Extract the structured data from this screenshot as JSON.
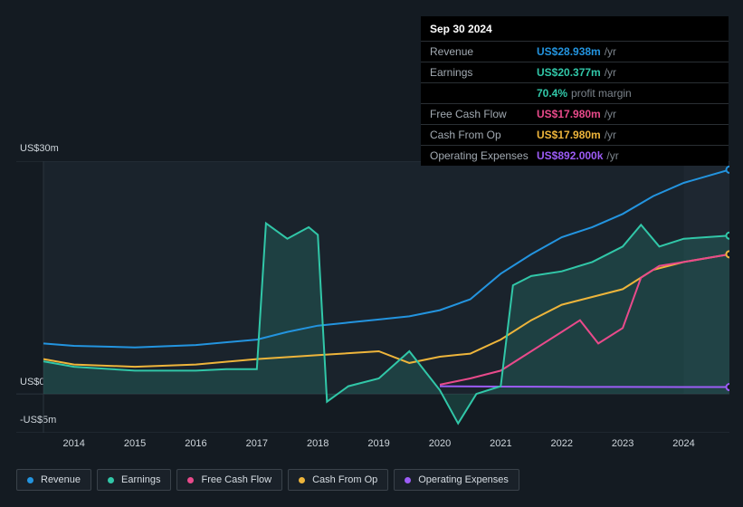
{
  "tooltip": {
    "date": "Sep 30 2024",
    "rows": [
      {
        "label": "Revenue",
        "value": "US$28.938m",
        "suffix": "/yr",
        "color": "#2394df"
      },
      {
        "label": "Earnings",
        "value": "US$20.377m",
        "suffix": "/yr",
        "color": "#31c7a8"
      },
      {
        "label": "",
        "value": "70.4%",
        "suffix": "profit margin",
        "color": "#31c7a8"
      },
      {
        "label": "Free Cash Flow",
        "value": "US$17.980m",
        "suffix": "/yr",
        "color": "#e94a8b"
      },
      {
        "label": "Cash From Op",
        "value": "US$17.980m",
        "suffix": "/yr",
        "color": "#eeb53b"
      },
      {
        "label": "Operating Expenses",
        "value": "US$892.000k",
        "suffix": "/yr",
        "color": "#9c5cf6"
      }
    ]
  },
  "chart": {
    "type": "line",
    "background": "#141b22",
    "plot_fill": "#1a232c",
    "grid_color": "#2a333c",
    "x": {
      "min": 2013.5,
      "max": 2024.75,
      "ticks": [
        2014,
        2015,
        2016,
        2017,
        2018,
        2019,
        2020,
        2021,
        2022,
        2023,
        2024
      ]
    },
    "y": {
      "min": -5,
      "max": 30,
      "ticks": [
        {
          "v": 30,
          "label": "US$30m"
        },
        {
          "v": 0,
          "label": "US$0"
        },
        {
          "v": -5,
          "label": "-US$5m"
        }
      ]
    },
    "series": {
      "revenue": {
        "label": "Revenue",
        "color": "#2394df",
        "fill": false,
        "points": [
          [
            2013.5,
            6.5
          ],
          [
            2014,
            6.2
          ],
          [
            2015,
            6.0
          ],
          [
            2016,
            6.3
          ],
          [
            2017,
            7.0
          ],
          [
            2017.5,
            8.0
          ],
          [
            2018,
            8.8
          ],
          [
            2018.5,
            9.2
          ],
          [
            2019,
            9.6
          ],
          [
            2019.5,
            10.0
          ],
          [
            2020,
            10.8
          ],
          [
            2020.5,
            12.2
          ],
          [
            2021,
            15.5
          ],
          [
            2021.5,
            18.0
          ],
          [
            2022,
            20.2
          ],
          [
            2022.5,
            21.5
          ],
          [
            2023,
            23.2
          ],
          [
            2023.5,
            25.5
          ],
          [
            2024,
            27.2
          ],
          [
            2024.75,
            28.9
          ]
        ]
      },
      "earnings": {
        "label": "Earnings",
        "color": "#31c7a8",
        "fill": true,
        "points": [
          [
            2013.5,
            4.2
          ],
          [
            2014,
            3.5
          ],
          [
            2015,
            3.0
          ],
          [
            2016,
            3.0
          ],
          [
            2016.5,
            3.2
          ],
          [
            2017,
            3.2
          ],
          [
            2017.15,
            22.0
          ],
          [
            2017.5,
            20.0
          ],
          [
            2017.85,
            21.5
          ],
          [
            2018.0,
            20.5
          ],
          [
            2018.15,
            -1.0
          ],
          [
            2018.5,
            1.0
          ],
          [
            2019,
            2.0
          ],
          [
            2019.5,
            5.5
          ],
          [
            2020,
            0.5
          ],
          [
            2020.3,
            -3.8
          ],
          [
            2020.6,
            0.0
          ],
          [
            2021,
            1.0
          ],
          [
            2021.2,
            14.0
          ],
          [
            2021.5,
            15.2
          ],
          [
            2022,
            15.8
          ],
          [
            2022.5,
            17.0
          ],
          [
            2023,
            19.0
          ],
          [
            2023.3,
            21.8
          ],
          [
            2023.6,
            19.0
          ],
          [
            2024,
            20.0
          ],
          [
            2024.75,
            20.4
          ]
        ]
      },
      "fcf": {
        "label": "Free Cash Flow",
        "color": "#e94a8b",
        "fill": false,
        "points": [
          [
            2020,
            1.2
          ],
          [
            2020.5,
            2.0
          ],
          [
            2021,
            3.0
          ],
          [
            2021.5,
            5.5
          ],
          [
            2022,
            8.0
          ],
          [
            2022.3,
            9.5
          ],
          [
            2022.6,
            6.5
          ],
          [
            2023,
            8.5
          ],
          [
            2023.3,
            15.0
          ],
          [
            2023.6,
            16.5
          ],
          [
            2024,
            17.0
          ],
          [
            2024.75,
            18.0
          ]
        ]
      },
      "cfo": {
        "label": "Cash From Op",
        "color": "#eeb53b",
        "fill": false,
        "points": [
          [
            2013.5,
            4.5
          ],
          [
            2014,
            3.8
          ],
          [
            2015,
            3.5
          ],
          [
            2016,
            3.8
          ],
          [
            2017,
            4.5
          ],
          [
            2018,
            5.0
          ],
          [
            2019,
            5.5
          ],
          [
            2019.5,
            4.0
          ],
          [
            2020,
            4.8
          ],
          [
            2020.5,
            5.2
          ],
          [
            2021,
            7.0
          ],
          [
            2021.5,
            9.5
          ],
          [
            2022,
            11.5
          ],
          [
            2022.5,
            12.5
          ],
          [
            2023,
            13.5
          ],
          [
            2023.5,
            16.0
          ],
          [
            2024,
            17.0
          ],
          [
            2024.75,
            18.0
          ]
        ]
      },
      "opex": {
        "label": "Operating Expenses",
        "color": "#9c5cf6",
        "fill": false,
        "points": [
          [
            2020,
            1.0
          ],
          [
            2021,
            0.95
          ],
          [
            2022,
            0.92
          ],
          [
            2023,
            0.9
          ],
          [
            2024,
            0.89
          ],
          [
            2024.75,
            0.89
          ]
        ]
      }
    },
    "legend_order": [
      "revenue",
      "earnings",
      "fcf",
      "cfo",
      "opex"
    ]
  }
}
